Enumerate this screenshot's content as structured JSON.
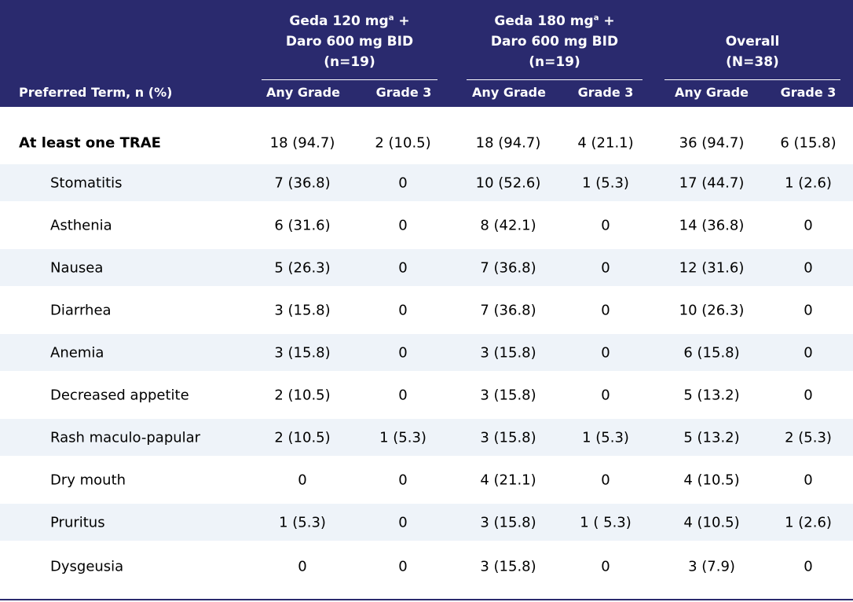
{
  "header": {
    "groups": [
      {
        "line1": "Geda 120 mg",
        "sup": "a",
        "line1_suffix": " +",
        "line2": "Daro 600 mg BID",
        "line3": "(n=19)"
      },
      {
        "line1": "Geda 180 mg",
        "sup": "a",
        "line1_suffix": " +",
        "line2": "Daro 600 mg BID",
        "line3": "(n=19)"
      },
      {
        "line1": "Overall",
        "line2": "(N=38)"
      }
    ],
    "preferred_term_label": "Preferred Term, n (%)",
    "sub_labels": [
      "Any Grade",
      "Grade 3",
      "Any Grade",
      "Grade 3",
      "Any Grade",
      "Grade 3"
    ]
  },
  "rows": [
    {
      "term": "At least one TRAE",
      "values": [
        "18 (94.7)",
        "2 (10.5)",
        "18 (94.7)",
        "4 (21.1)",
        "36 (94.7)",
        "6 (15.8)"
      ]
    },
    {
      "term": "Stomatitis",
      "values": [
        "7 (36.8)",
        "0",
        "10 (52.6)",
        "1 (5.3)",
        "17 (44.7)",
        "1 (2.6)"
      ]
    },
    {
      "term": "Asthenia",
      "values": [
        "6 (31.6)",
        "0",
        "8 (42.1)",
        "0",
        "14 (36.8)",
        "0"
      ]
    },
    {
      "term": "Nausea",
      "values": [
        "5 (26.3)",
        "0",
        "7 (36.8)",
        "0",
        "12 (31.6)",
        "0"
      ]
    },
    {
      "term": "Diarrhea",
      "values": [
        "3 (15.8)",
        "0",
        "7 (36.8)",
        "0",
        "10 (26.3)",
        "0"
      ]
    },
    {
      "term": "Anemia",
      "values": [
        "3 (15.8)",
        "0",
        "3 (15.8)",
        "0",
        "6 (15.8)",
        "0"
      ]
    },
    {
      "term": "Decreased appetite",
      "values": [
        "2 (10.5)",
        "0",
        "3 (15.8)",
        "0",
        "5 (13.2)",
        "0"
      ]
    },
    {
      "term": "Rash maculo-papular",
      "values": [
        "2 (10.5)",
        "1 (5.3)",
        "3 (15.8)",
        "1 (5.3)",
        "5 (13.2)",
        "2 (5.3)"
      ]
    },
    {
      "term": "Dry mouth",
      "values": [
        "0",
        "0",
        "4 (21.1)",
        "0",
        "4 (10.5)",
        "0"
      ]
    },
    {
      "term": "Pruritus",
      "values": [
        "1 (5.3)",
        "0",
        "3 (15.8)",
        "1 ( 5.3)",
        "4 (10.5)",
        "1 (2.6)"
      ]
    },
    {
      "term": "Dysgeusia",
      "values": [
        "0",
        "0",
        "3 (15.8)",
        "0",
        "3 (7.9)",
        "0"
      ]
    }
  ]
}
